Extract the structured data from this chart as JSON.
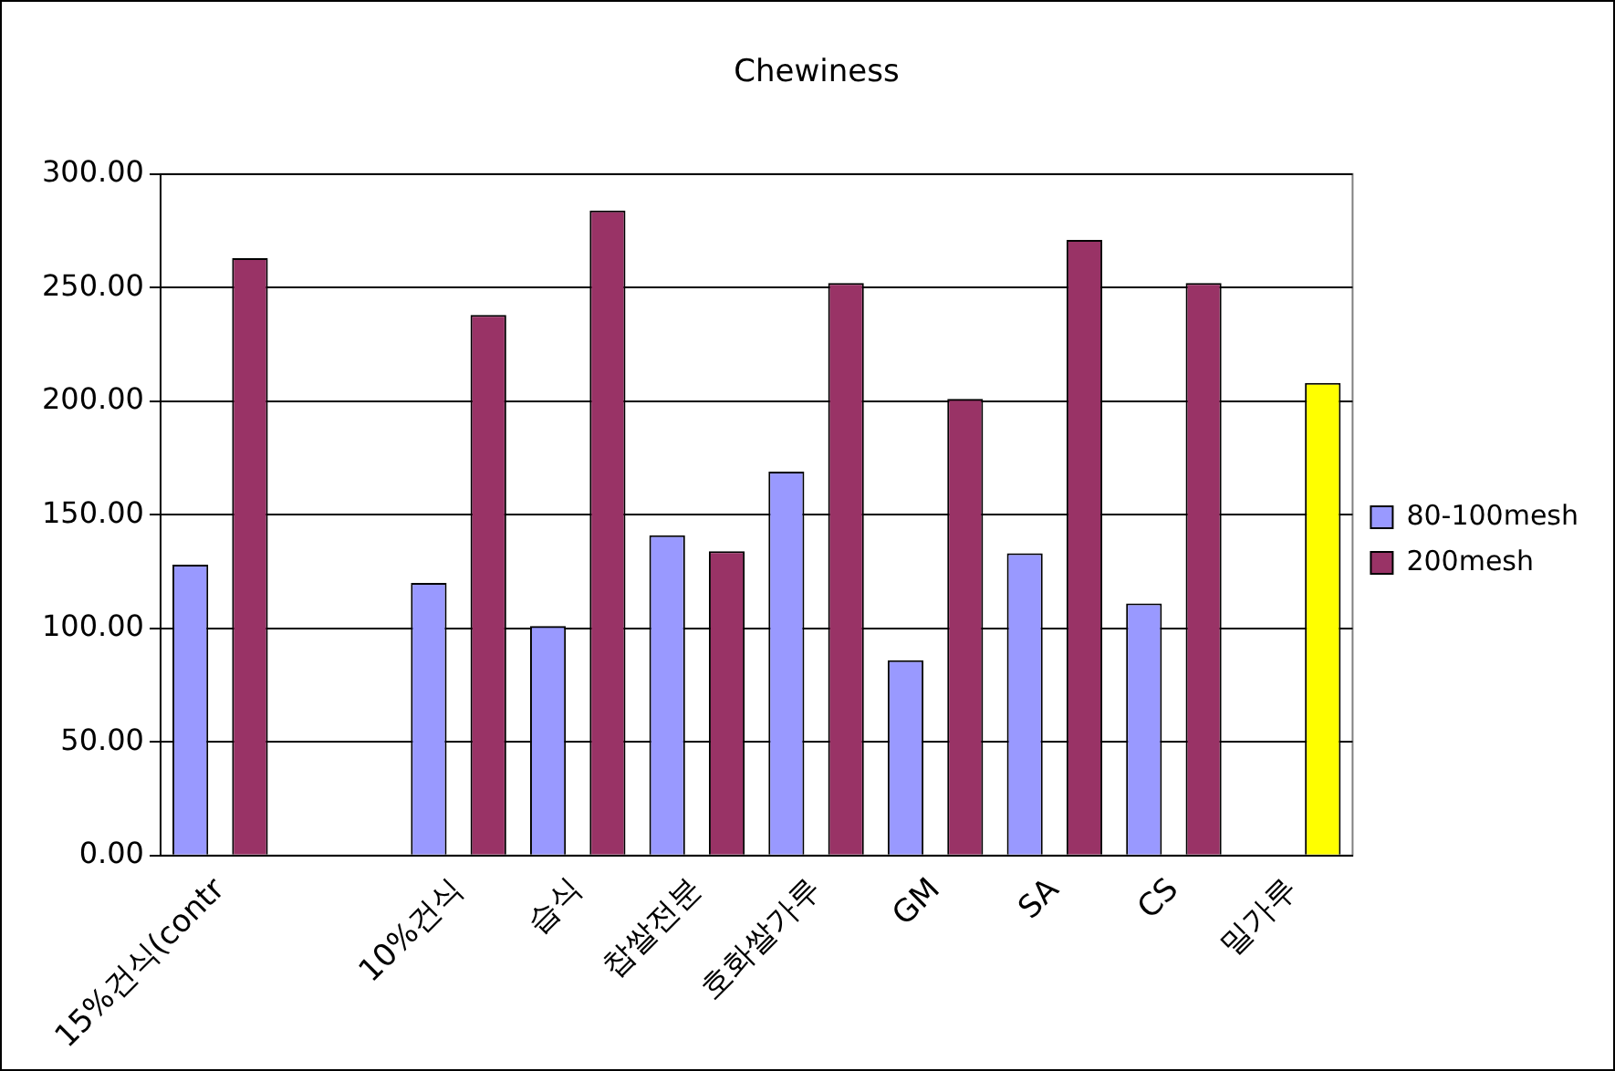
{
  "chart_data": {
    "type": "bar",
    "title": "Chewiness",
    "categories": [
      "15%건식(contr",
      null,
      "10%건식",
      "습식",
      "찹쌀전분",
      "호화쌀가루",
      "GM",
      "SA",
      "CS",
      "밀가루"
    ],
    "series": [
      {
        "name": "80-100mesh",
        "color": "#9999ff",
        "values": [
          128,
          null,
          120,
          101,
          141,
          169,
          86,
          133,
          111,
          null
        ]
      },
      {
        "name": "200mesh",
        "color": "#993366",
        "colors": [
          "#993366",
          "#993366",
          "#993366",
          "#993366",
          "#993366",
          "#993366",
          "#993366",
          "#993366",
          "#993366",
          "#ffff00"
        ],
        "values": [
          263,
          null,
          238,
          284,
          134,
          252,
          201,
          271,
          252,
          208
        ]
      }
    ],
    "ylim": [
      0,
      300
    ],
    "yticks": [
      {
        "value": 0,
        "label": "0.00"
      },
      {
        "value": 50,
        "label": "50.00"
      },
      {
        "value": 100,
        "label": "100.00"
      },
      {
        "value": 150,
        "label": "150.00"
      },
      {
        "value": 200,
        "label": "200.00"
      },
      {
        "value": 250,
        "label": "250.00"
      },
      {
        "value": 300,
        "label": "300.00"
      }
    ],
    "grid": "y",
    "legend": "right"
  }
}
